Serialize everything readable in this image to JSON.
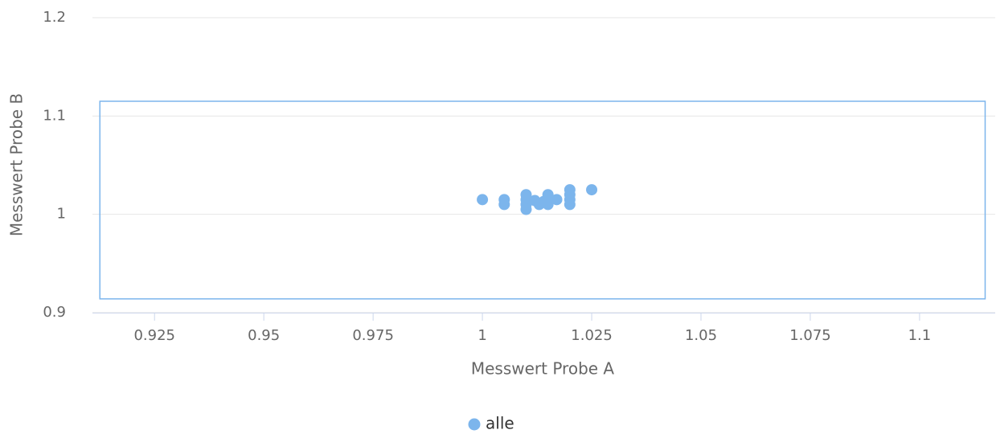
{
  "chart_data": {
    "type": "scatter",
    "x_label": "Messwert Probe A",
    "y_label": "Messwert Probe B",
    "series": [
      {
        "name": "alle",
        "color": "#7cb5ec",
        "x": [
          1.0,
          1.005,
          1.005,
          1.01,
          1.01,
          1.01,
          1.01,
          1.012,
          1.013,
          1.014,
          1.015,
          1.015,
          1.015,
          1.017,
          1.02,
          1.02,
          1.02,
          1.02,
          1.025
        ],
        "values": [
          1.015,
          1.015,
          1.01,
          1.02,
          1.015,
          1.01,
          1.005,
          1.014,
          1.01,
          1.013,
          1.02,
          1.015,
          1.01,
          1.015,
          1.025,
          1.02,
          1.015,
          1.01,
          1.025
        ]
      }
    ],
    "box": {
      "x": [
        0.9125,
        1.115
      ],
      "y": [
        0.914,
        1.115
      ],
      "color": "#7cb5ec"
    },
    "xlim": [
      0.9108,
      1.1173
    ],
    "ylim": [
      0.9,
      1.2
    ],
    "xticks": [
      0.925,
      0.95,
      0.975,
      1,
      1.025,
      1.05,
      1.075,
      1.1
    ],
    "yticks": [
      0.9,
      1,
      1.1,
      1.2
    ],
    "grid": true,
    "legend": "bottom"
  }
}
